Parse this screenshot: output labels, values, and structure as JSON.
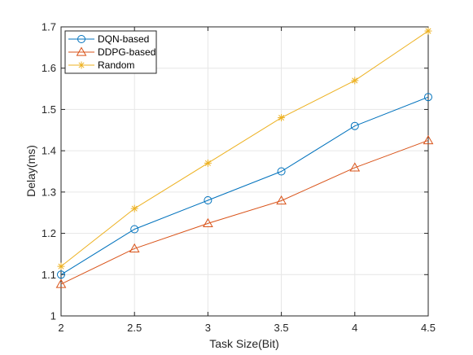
{
  "chart_data": {
    "type": "line",
    "xlabel": "Task Size(Bit)",
    "ylabel": "Delay(ms)",
    "xlim": [
      2,
      4.5
    ],
    "ylim": [
      1,
      1.7
    ],
    "xticks": [
      "2",
      "2.5",
      "3",
      "3.5",
      "4",
      "4.5"
    ],
    "yticks": [
      "1",
      "1.1",
      "1.2",
      "1.3",
      "1.4",
      "1.5",
      "1.6",
      "1.7"
    ],
    "grid": true,
    "legend_position": "top-left",
    "x": [
      2,
      2.5,
      3,
      3.5,
      4,
      4.5
    ],
    "series": [
      {
        "name": "DQN-based",
        "values": [
          1.1,
          1.21,
          1.28,
          1.35,
          1.46,
          1.53
        ],
        "color": "#0072BD",
        "marker": "circle"
      },
      {
        "name": "DDPG-based",
        "values": [
          1.077,
          1.163,
          1.224,
          1.279,
          1.359,
          1.425
        ],
        "color": "#D95319",
        "marker": "triangle"
      },
      {
        "name": "Random",
        "values": [
          1.12,
          1.26,
          1.37,
          1.48,
          1.57,
          1.69
        ],
        "color": "#EDB120",
        "marker": "asterisk"
      }
    ]
  }
}
